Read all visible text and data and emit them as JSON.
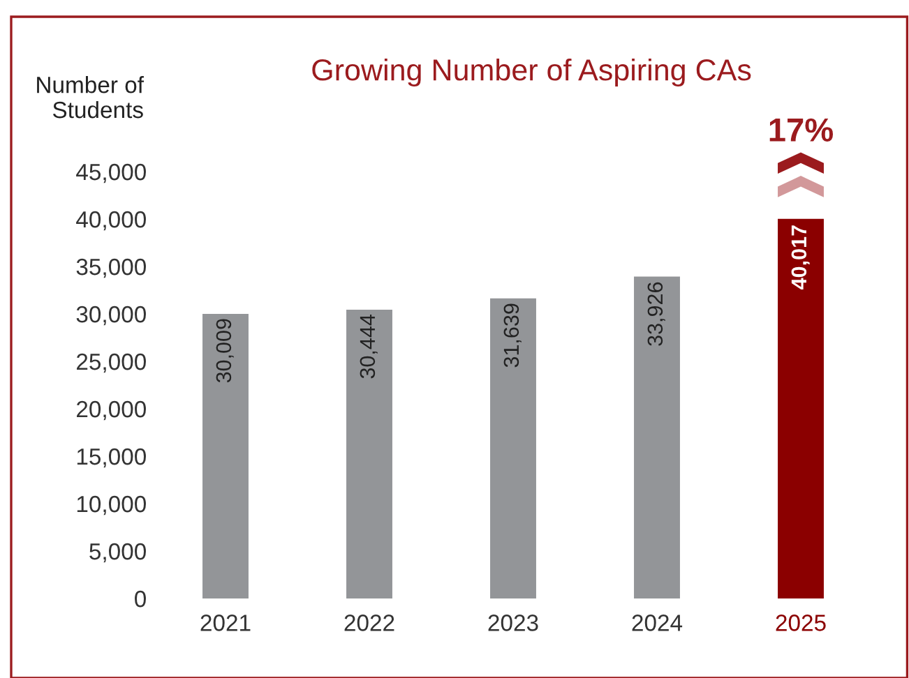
{
  "chart_data": {
    "type": "bar",
    "title": "Growing Number of Aspiring CAs",
    "ylabel": "Number of\nStudents",
    "categories": [
      "2021",
      "2022",
      "2023",
      "2024",
      "2025"
    ],
    "values": [
      30009,
      30444,
      31639,
      33926,
      40017
    ],
    "colors": [
      "#939598",
      "#939598",
      "#939598",
      "#939598",
      "#8b0000"
    ],
    "value_labels": [
      "30,009",
      "30,444",
      "31,639",
      "33,926",
      "40,017"
    ],
    "annotations": [
      "17%"
    ],
    "ylim": [
      0,
      45000
    ],
    "yticks": [
      {
        "value": 0,
        "label": "0"
      },
      {
        "value": 5000,
        "label": "5,000"
      },
      {
        "value": 10000,
        "label": "10,000"
      },
      {
        "value": 15000,
        "label": "15,000"
      },
      {
        "value": 20000,
        "label": "20,000"
      },
      {
        "value": 25000,
        "label": "25,000"
      },
      {
        "value": 30000,
        "label": "30,000"
      },
      {
        "value": 35000,
        "label": "35,000"
      },
      {
        "value": 40000,
        "label": "40,000"
      },
      {
        "value": 45000,
        "label": "45,000"
      }
    ],
    "grid": false,
    "legend": false
  }
}
